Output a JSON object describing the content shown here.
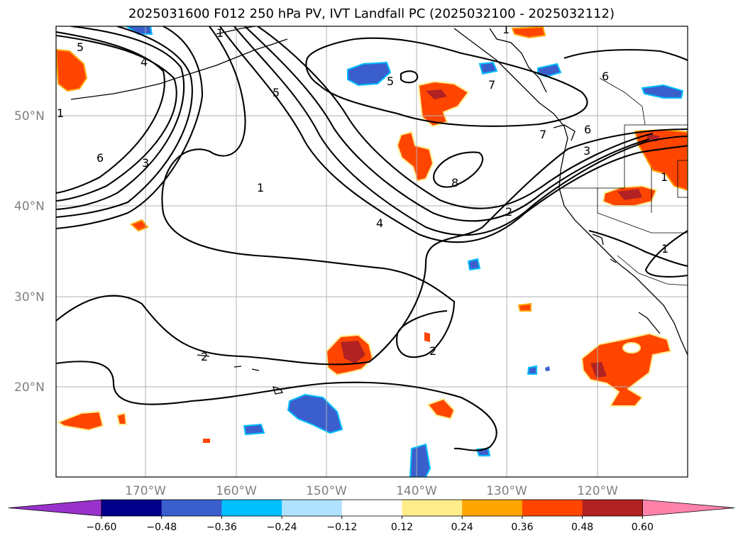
{
  "title": "2025031600 F012 250 hPa PV, IVT Landfall PC (2025032100 - 2025032112)",
  "map": {
    "lat_labels": [
      "50°N",
      "40°N",
      "30°N",
      "20°N"
    ],
    "lon_labels": [
      "170°W",
      "160°W",
      "150°W",
      "140°W",
      "130°W",
      "120°W"
    ],
    "contour_labels": [
      "5",
      "4",
      "1",
      "6",
      "3",
      "1",
      "5",
      "5",
      "7",
      "6",
      "3",
      "7",
      "8",
      "4",
      "2",
      "2",
      "1",
      "1",
      "6",
      "2",
      "1",
      "1"
    ]
  },
  "colorbar": {
    "ticks": [
      "−0.60",
      "−0.48",
      "−0.36",
      "−0.24",
      "−0.12",
      "0.12",
      "0.24",
      "0.36",
      "0.48",
      "0.60"
    ],
    "colors": [
      "#9932cc",
      "#00008b",
      "#3a5fcd",
      "#00bfff",
      "#b0e2ff",
      "#ffffff",
      "#ffec8b",
      "#ffa500",
      "#ff4500",
      "#b22222",
      "#ff82ab"
    ]
  }
}
